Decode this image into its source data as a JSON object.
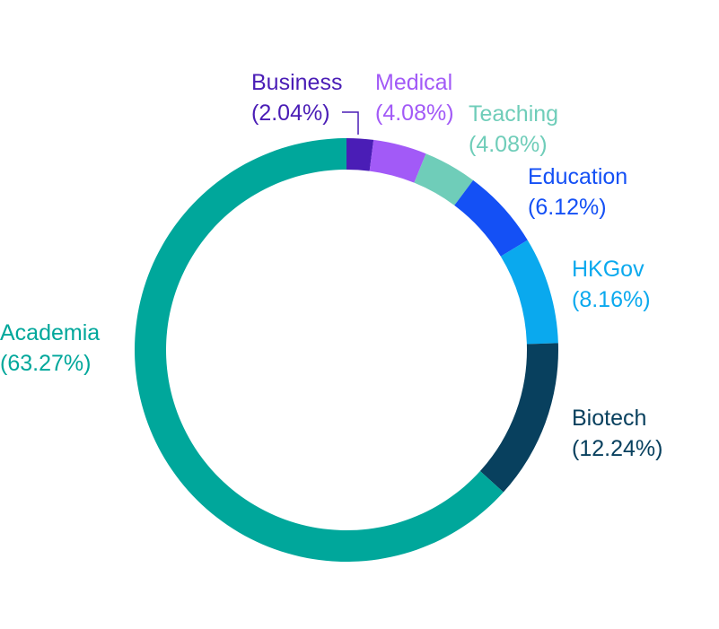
{
  "chart_data": {
    "type": "pie",
    "donut": true,
    "direction": "clockwise from top",
    "categories": [
      "Business",
      "Medical",
      "Teaching",
      "Education",
      "HKGov",
      "Biotech",
      "Academia"
    ],
    "values": [
      2.04,
      4.08,
      4.08,
      6.12,
      8.16,
      12.24,
      63.27
    ],
    "value_labels": [
      "(2.04%)",
      "(4.08%)",
      "(4.08%)",
      "(6.12%)",
      "(8.16%)",
      "(12.24%)",
      "(63.27%)"
    ],
    "colors": [
      "#4A1DB6",
      "#A25AF7",
      "#6FCDB9",
      "#1450F5",
      "#0AA9EE",
      "#08405E",
      "#00A79B"
    ],
    "unit": "%"
  }
}
